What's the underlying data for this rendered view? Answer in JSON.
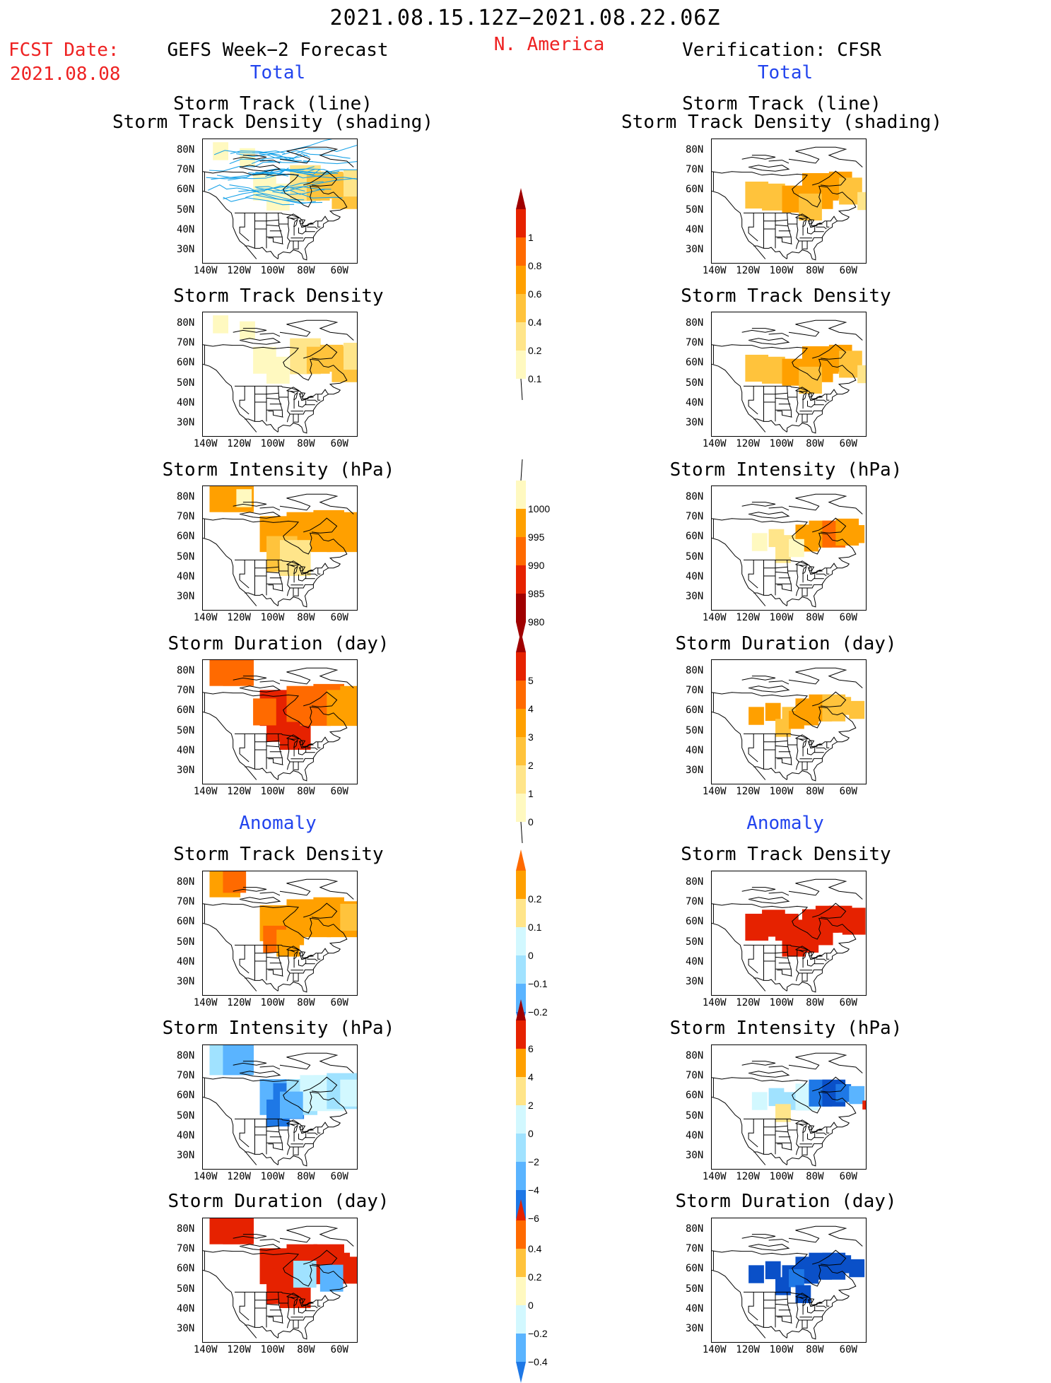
{
  "header": {
    "date_range": "2021.08.15.12Z−2021.08.22.06Z",
    "fcst_label": "FCST Date:",
    "fcst_date": "2021.08.08",
    "left_title": "GEFS Week−2 Forecast",
    "region": "N. America",
    "right_title": "Verification: CFSR",
    "total_left": "Total",
    "total_right": "Total",
    "anomaly_left": "Anomaly",
    "anomaly_right": "Anomaly"
  },
  "panel_titles": {
    "track_line": "Storm Track (line)",
    "track_shading": "Storm Track Density (shading)",
    "density": "Storm Track Density",
    "intensity": "Storm Intensity (hPa)",
    "duration": "Storm Duration (day)"
  },
  "colors": {
    "c1": "#fff9c0",
    "c2": "#ffe58a",
    "c3": "#ffc33c",
    "c4": "#ffa000",
    "c5": "#ff6a00",
    "c6": "#e62200",
    "c7": "#a00000",
    "b1": "#d2f8ff",
    "b2": "#a0e2ff",
    "b3": "#5ab4ff",
    "b4": "#1e78e6",
    "b5": "#0a50c8",
    "track": "#1aa3e8"
  },
  "chart_data": [
    {
      "type": "heatmap",
      "name": "gefs_total_track",
      "title": "Storm Track (line) / Storm Track Density (shading)",
      "xlim": [
        -140,
        -50
      ],
      "ylim": [
        25,
        85
      ],
      "x_ticks": [
        "140W",
        "120W",
        "100W",
        "80W",
        "60W"
      ],
      "y_ticks": [
        "30N",
        "40N",
        "50N",
        "60N",
        "70N",
        "80N"
      ],
      "tracks": "many blue storm track lines over Canada 55N-80N"
    },
    {
      "type": "heatmap",
      "name": "cfsr_total_track",
      "title": "Storm Track (line) / Storm Track Density (shading)",
      "xlim": [
        -140,
        -50
      ],
      "ylim": [
        25,
        85
      ]
    },
    {
      "type": "heatmap",
      "name": "gefs_total_density",
      "title": "Storm Track Density",
      "colorbar": [
        0.1,
        0.2,
        0.4,
        0.6,
        0.8,
        1
      ]
    },
    {
      "type": "heatmap",
      "name": "cfsr_total_density",
      "title": "Storm Track Density",
      "colorbar": [
        0.1,
        0.2,
        0.4,
        0.6,
        0.8,
        1
      ]
    },
    {
      "type": "heatmap",
      "name": "gefs_total_intensity",
      "title": "Storm Intensity (hPa)",
      "colorbar": [
        1000,
        995,
        990,
        985,
        980
      ]
    },
    {
      "type": "heatmap",
      "name": "cfsr_total_intensity",
      "title": "Storm Intensity (hPa)",
      "colorbar": [
        1000,
        995,
        990,
        985,
        980
      ]
    },
    {
      "type": "heatmap",
      "name": "gefs_total_duration",
      "title": "Storm Duration (day)",
      "colorbar": [
        0,
        1,
        2,
        3,
        4,
        5
      ]
    },
    {
      "type": "heatmap",
      "name": "cfsr_total_duration",
      "title": "Storm Duration (day)",
      "colorbar": [
        0,
        1,
        2,
        3,
        4,
        5
      ]
    },
    {
      "type": "heatmap",
      "name": "gefs_anom_density",
      "title": "Storm Track Density",
      "colorbar": [
        -0.2,
        -0.1,
        0,
        0.1,
        0.2
      ]
    },
    {
      "type": "heatmap",
      "name": "cfsr_anom_density",
      "title": "Storm Track Density",
      "colorbar": [
        -0.2,
        -0.1,
        0,
        0.1,
        0.2
      ]
    },
    {
      "type": "heatmap",
      "name": "gefs_anom_intensity",
      "title": "Storm Intensity (hPa)",
      "colorbar": [
        -6,
        -4,
        -2,
        0,
        2,
        4,
        6
      ]
    },
    {
      "type": "heatmap",
      "name": "cfsr_anom_intensity",
      "title": "Storm Intensity (hPa)",
      "colorbar": [
        -6,
        -4,
        -2,
        0,
        2,
        4,
        6
      ]
    },
    {
      "type": "heatmap",
      "name": "gefs_anom_duration",
      "title": "Storm Duration (day)",
      "colorbar": [
        -0.4,
        -0.2,
        0,
        0.2,
        0.4
      ]
    },
    {
      "type": "heatmap",
      "name": "cfsr_anom_duration",
      "title": "Storm Duration (day)",
      "colorbar": [
        -0.4,
        -0.2,
        0,
        0.2,
        0.4
      ]
    }
  ],
  "axes": {
    "y_ticks": [
      "80N",
      "70N",
      "60N",
      "50N",
      "40N",
      "30N"
    ],
    "x_ticks": [
      "140W",
      "120W",
      "100W",
      "80W",
      "60W"
    ]
  },
  "colorbars": {
    "density": [
      "1",
      "0.8",
      "0.6",
      "0.4",
      "0.2",
      "0.1"
    ],
    "intensity": [
      "1000",
      "995",
      "990",
      "985",
      "980"
    ],
    "duration": [
      "5",
      "4",
      "3",
      "2",
      "1",
      "0"
    ],
    "anom_density": [
      "0.2",
      "0.1",
      "0",
      "−0.1",
      "−0.2"
    ],
    "anom_intensity": [
      "6",
      "4",
      "2",
      "0",
      "−2",
      "−4",
      "−6"
    ],
    "anom_duration": [
      "0.4",
      "0.2",
      "0",
      "−0.2",
      "−0.4"
    ]
  },
  "fields": {
    "gefs_total_density": [
      [
        -136,
        80,
        2,
        1
      ],
      [
        -120,
        77,
        2,
        1
      ],
      [
        -112,
        62,
        3,
        1
      ],
      [
        -104,
        57,
        3,
        1
      ],
      [
        -90,
        64,
        4,
        2
      ],
      [
        -80,
        62,
        3,
        3
      ],
      [
        -72,
        63,
        3,
        3
      ],
      [
        -65,
        60,
        4,
        3
      ],
      [
        -58,
        64,
        3,
        2
      ]
    ],
    "cfsr_total_density": [
      [
        -122,
        58,
        3,
        3
      ],
      [
        -112,
        57,
        3,
        3
      ],
      [
        -100,
        56,
        3,
        4
      ],
      [
        -88,
        60,
        4,
        4
      ],
      [
        -80,
        62,
        3,
        4
      ],
      [
        -72,
        63,
        3,
        4
      ],
      [
        -66,
        60,
        3,
        3
      ],
      [
        -90,
        52,
        3,
        3
      ],
      [
        -55,
        55,
        2,
        2
      ]
    ],
    "gefs_total_intensity": [
      [
        -138,
        82,
        4,
        4
      ],
      [
        -130,
        82,
        4,
        4
      ],
      [
        -122,
        80,
        2,
        1
      ],
      [
        -108,
        62,
        4,
        4
      ],
      [
        -100,
        58,
        4,
        4
      ],
      [
        -92,
        64,
        4,
        4
      ],
      [
        -84,
        62,
        4,
        4
      ],
      [
        -76,
        65,
        4,
        4
      ],
      [
        -68,
        62,
        4,
        4
      ],
      [
        -60,
        64,
        4,
        4
      ],
      [
        -104,
        52,
        4,
        3
      ],
      [
        -96,
        50,
        4,
        2
      ]
    ],
    "cfsr_total_intensity": [
      [
        -118,
        58,
        2,
        1
      ],
      [
        -108,
        60,
        2,
        2
      ],
      [
        -100,
        57,
        2,
        2
      ],
      [
        -92,
        60,
        3,
        4
      ],
      [
        -84,
        62,
        3,
        4
      ],
      [
        -76,
        62,
        3,
        5
      ],
      [
        -68,
        63,
        3,
        4
      ],
      [
        -60,
        62,
        2,
        4
      ],
      [
        -104,
        52,
        2,
        2
      ],
      [
        -96,
        55,
        2,
        1
      ]
    ],
    "gefs_total_duration": [
      [
        -138,
        82,
        4,
        5
      ],
      [
        -130,
        82,
        4,
        5
      ],
      [
        -122,
        80,
        2,
        5
      ],
      [
        -108,
        62,
        4,
        6
      ],
      [
        -100,
        58,
        4,
        6
      ],
      [
        -104,
        54,
        4,
        6
      ],
      [
        -96,
        50,
        4,
        6
      ],
      [
        -92,
        64,
        4,
        5
      ],
      [
        -84,
        62,
        4,
        5
      ],
      [
        -76,
        65,
        4,
        5
      ],
      [
        -68,
        62,
        4,
        4
      ],
      [
        -60,
        64,
        4,
        4
      ],
      [
        -112,
        60,
        3,
        5
      ]
    ],
    "cfsr_total_duration": [
      [
        -120,
        58,
        2,
        4
      ],
      [
        -110,
        60,
        2,
        4
      ],
      [
        -100,
        58,
        2,
        3
      ],
      [
        -92,
        60,
        3,
        4
      ],
      [
        -84,
        62,
        3,
        4
      ],
      [
        -76,
        62,
        3,
        3
      ],
      [
        -68,
        63,
        2,
        3
      ],
      [
        -60,
        61,
        2,
        3
      ],
      [
        -104,
        52,
        2,
        3
      ],
      [
        -96,
        56,
        2,
        4
      ]
    ],
    "gefs_anom_density": [
      [
        -138,
        82,
        4,
        3
      ],
      [
        -130,
        82,
        3,
        4
      ],
      [
        -108,
        60,
        4,
        3
      ],
      [
        -100,
        58,
        4,
        3
      ],
      [
        -92,
        63,
        4,
        3
      ],
      [
        -84,
        62,
        4,
        3
      ],
      [
        -76,
        64,
        4,
        3
      ],
      [
        -68,
        62,
        4,
        3
      ],
      [
        -60,
        63,
        3,
        2
      ],
      [
        -106,
        52,
        3,
        4
      ],
      [
        -98,
        50,
        3,
        3
      ]
    ],
    "cfsr_anom_density": [
      [
        -122,
        58,
        3,
        5
      ],
      [
        -112,
        60,
        3,
        6
      ],
      [
        -104,
        58,
        3,
        6
      ],
      [
        -96,
        55,
        3,
        6
      ],
      [
        -88,
        58,
        4,
        6
      ],
      [
        -80,
        62,
        3,
        5
      ],
      [
        -72,
        62,
        3,
        6
      ],
      [
        -64,
        61,
        3,
        5
      ],
      [
        -100,
        50,
        3,
        6
      ],
      [
        -92,
        52,
        3,
        5
      ]
    ],
    "gefs_anom_intensity": [
      [
        -138,
        80,
        4,
        -2
      ],
      [
        -130,
        80,
        4,
        -3
      ],
      [
        -108,
        60,
        4,
        -3
      ],
      [
        -100,
        58,
        4,
        -4
      ],
      [
        -92,
        60,
        4,
        -2
      ],
      [
        -84,
        62,
        4,
        -1
      ],
      [
        -76,
        62,
        4,
        -1
      ],
      [
        -68,
        63,
        4,
        -2
      ],
      [
        -60,
        62,
        3,
        -1
      ],
      [
        -104,
        52,
        3,
        -4
      ],
      [
        -96,
        56,
        3,
        -3
      ]
    ],
    "cfsr_anom_intensity": [
      [
        -118,
        58,
        2,
        -1
      ],
      [
        -108,
        60,
        2,
        -2
      ],
      [
        -100,
        58,
        2,
        -2
      ],
      [
        -92,
        60,
        3,
        -1
      ],
      [
        -84,
        62,
        3,
        -4
      ],
      [
        -76,
        62,
        3,
        -5
      ],
      [
        -68,
        62,
        2,
        -4
      ],
      [
        -60,
        61,
        2,
        -3
      ],
      [
        -104,
        52,
        2,
        1
      ],
      [
        -52,
        56,
        1,
        6
      ]
    ],
    "gefs_anom_duration": [
      [
        -138,
        82,
        4,
        6
      ],
      [
        -130,
        82,
        4,
        6
      ],
      [
        -108,
        62,
        4,
        6
      ],
      [
        -100,
        58,
        4,
        6
      ],
      [
        -104,
        52,
        4,
        6
      ],
      [
        -96,
        50,
        4,
        6
      ],
      [
        -92,
        64,
        4,
        5
      ],
      [
        -84,
        62,
        4,
        6
      ],
      [
        -76,
        64,
        4,
        6
      ],
      [
        -68,
        62,
        3,
        6
      ],
      [
        -60,
        60,
        3,
        6
      ],
      [
        -88,
        58,
        3,
        -2
      ],
      [
        -72,
        56,
        3,
        -3
      ]
    ],
    "cfsr_anom_duration": [
      [
        -120,
        58,
        2,
        -5
      ],
      [
        -110,
        60,
        2,
        -5
      ],
      [
        -100,
        58,
        2,
        -5
      ],
      [
        -92,
        60,
        3,
        -5
      ],
      [
        -84,
        62,
        3,
        -5
      ],
      [
        -76,
        62,
        3,
        -5
      ],
      [
        -68,
        63,
        2,
        -5
      ],
      [
        -60,
        61,
        2,
        -5
      ],
      [
        -104,
        52,
        2,
        -5
      ],
      [
        -96,
        56,
        2,
        -4
      ],
      [
        -92,
        48,
        2,
        -5
      ]
    ]
  }
}
